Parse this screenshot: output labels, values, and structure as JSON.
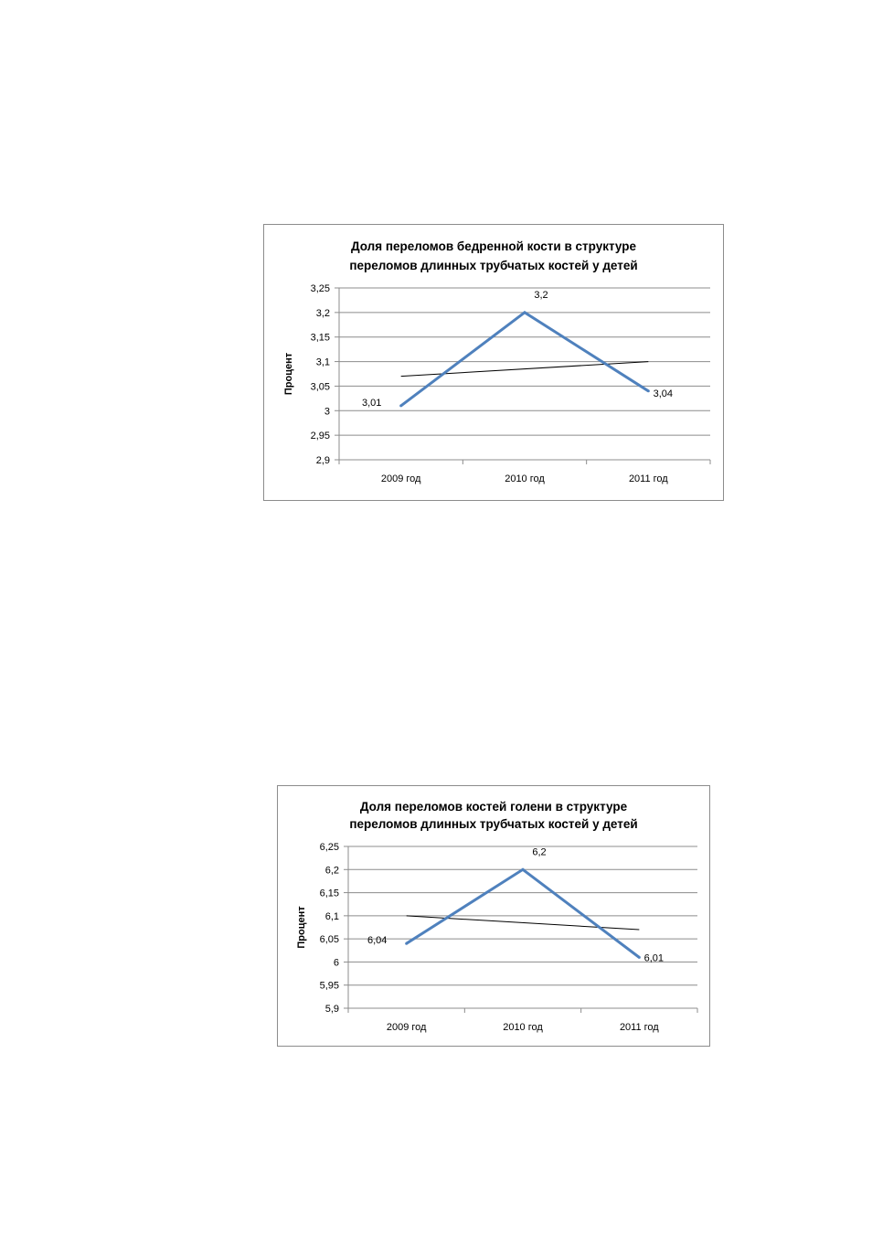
{
  "chart_data": [
    {
      "type": "line",
      "title": [
        "Доля переломов бедренной кости в структуре",
        "переломов длинных трубчатых костей у детей"
      ],
      "ylabel": "Процент",
      "xlabel": "",
      "categories": [
        "2009 год",
        "2010 год",
        "2011 год"
      ],
      "series": [
        {
          "values": [
            3.01,
            3.2,
            3.04
          ],
          "data_labels": [
            "3,01",
            "3,2",
            "3,04"
          ],
          "color": "#4f81bd"
        }
      ],
      "trendline": {
        "values": [
          3.07,
          3.085,
          3.1
        ],
        "color": "#000000"
      },
      "yticks": [
        2.9,
        2.95,
        3,
        3.05,
        3.1,
        3.15,
        3.2,
        3.25
      ],
      "ytick_labels": [
        "2,9",
        "2,95",
        "3",
        "3,05",
        "3,1",
        "3,15",
        "3,2",
        "3,25"
      ],
      "ylim": [
        2.9,
        3.25
      ],
      "grid": true,
      "legend": "none"
    },
    {
      "type": "line",
      "title": [
        "Доля переломов костей голени в структуре",
        "переломов длинных трубчатых костей у детей"
      ],
      "ylabel": "Процент",
      "xlabel": "",
      "categories": [
        "2009 год",
        "2010 год",
        "2011 год"
      ],
      "series": [
        {
          "values": [
            6.04,
            6.2,
            6.01
          ],
          "data_labels": [
            "6,04",
            "6,2",
            "6,01"
          ],
          "color": "#4f81bd"
        }
      ],
      "trendline": {
        "values": [
          6.1,
          6.085,
          6.07
        ],
        "color": "#000000"
      },
      "yticks": [
        5.9,
        5.95,
        6,
        6.05,
        6.1,
        6.15,
        6.2,
        6.25
      ],
      "ytick_labels": [
        "5,9",
        "5,95",
        "6",
        "6,05",
        "6,1",
        "6,15",
        "6,2",
        "6,25"
      ],
      "ylim": [
        5.9,
        6.25
      ],
      "grid": true,
      "legend": "none"
    }
  ]
}
